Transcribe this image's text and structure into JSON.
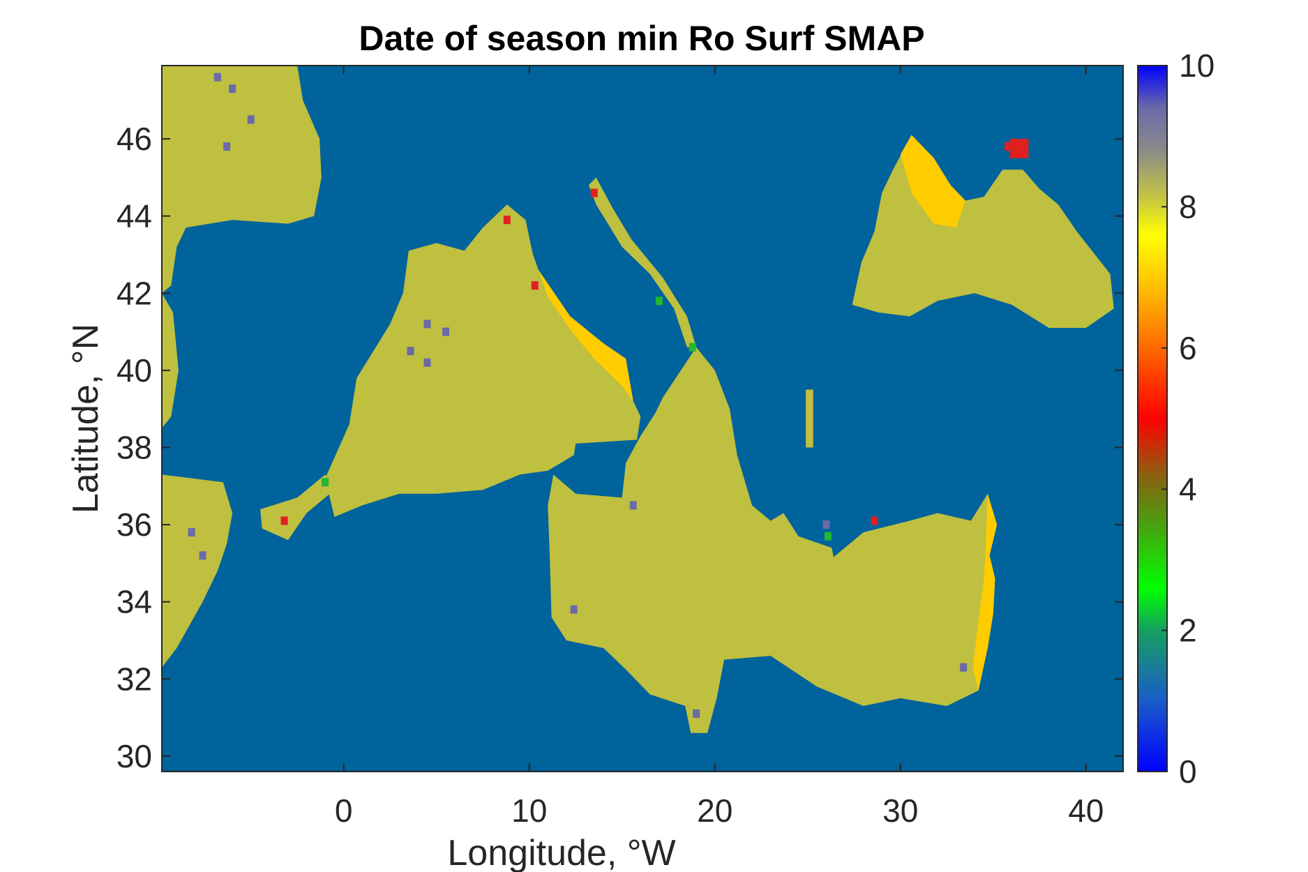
{
  "chart_data": {
    "type": "heatmap",
    "title": "Date of season min Ro Surf SMAP",
    "xlabel": "Longitude, °W",
    "ylabel": "Latitude, °N",
    "xlim": [
      -9.8,
      42
    ],
    "ylim": [
      29.6,
      47.9
    ],
    "x_ticks": [
      0,
      10,
      20,
      30,
      40
    ],
    "y_ticks": [
      30,
      32,
      34,
      36,
      38,
      40,
      42,
      44,
      46
    ],
    "colorbar": {
      "range": [
        0,
        10
      ],
      "ticks": [
        0,
        2,
        4,
        6,
        8,
        10
      ],
      "colormap_stops": [
        {
          "value": 0,
          "color": "#0000ff"
        },
        {
          "value": 1,
          "color": "#1a5cc8"
        },
        {
          "value": 2,
          "color": "#16a060"
        },
        {
          "value": 2.6,
          "color": "#00ff00"
        },
        {
          "value": 3.5,
          "color": "#4aa010"
        },
        {
          "value": 4.2,
          "color": "#8b6010"
        },
        {
          "value": 5,
          "color": "#ff0000"
        },
        {
          "value": 6,
          "color": "#ff6a00"
        },
        {
          "value": 7,
          "color": "#ffcc00"
        },
        {
          "value": 7.6,
          "color": "#ffff00"
        },
        {
          "value": 8.1,
          "color": "#c8c840"
        },
        {
          "value": 8.8,
          "color": "#8a8a8a"
        },
        {
          "value": 9.4,
          "color": "#6a6aa8"
        },
        {
          "value": 10,
          "color": "#0000ff"
        }
      ]
    },
    "background_color": "#00639b",
    "dominant_value": 8.2,
    "regions": [
      {
        "name": "bay-of-biscay",
        "value": 8.2,
        "color": "#bfbf40",
        "polygon": [
          [
            -9.8,
            47.9
          ],
          [
            -2.5,
            47.9
          ],
          [
            -2.2,
            47
          ],
          [
            -1.3,
            46
          ],
          [
            -1.2,
            45
          ],
          [
            -1.6,
            44
          ],
          [
            -3,
            43.8
          ],
          [
            -6,
            43.9
          ],
          [
            -8.5,
            43.7
          ],
          [
            -9,
            43.2
          ],
          [
            -9.3,
            42.2
          ],
          [
            -9.8,
            42
          ]
        ]
      },
      {
        "name": "portugal-coast",
        "value": 8.2,
        "color": "#bfbf40",
        "polygon": [
          [
            -9.8,
            42
          ],
          [
            -9.2,
            41.5
          ],
          [
            -8.9,
            40
          ],
          [
            -9.3,
            38.8
          ],
          [
            -9.8,
            38.5
          ]
        ]
      },
      {
        "name": "morocco-atlantic",
        "value": 8.2,
        "color": "#bfbf40",
        "polygon": [
          [
            -9.8,
            37.3
          ],
          [
            -6.5,
            37.1
          ],
          [
            -6,
            36.3
          ],
          [
            -6.3,
            35.5
          ],
          [
            -6.8,
            34.8
          ],
          [
            -7.6,
            34
          ],
          [
            -9,
            32.8
          ],
          [
            -9.8,
            32.3
          ]
        ]
      },
      {
        "name": "alboran",
        "value": 8.2,
        "color": "#bfbf40",
        "polygon": [
          [
            -4.5,
            36.4
          ],
          [
            -2.5,
            36.7
          ],
          [
            -1,
            37.3
          ],
          [
            -0.5,
            36.9
          ],
          [
            -2,
            36.3
          ],
          [
            -3,
            35.6
          ],
          [
            -4.4,
            35.9
          ]
        ]
      },
      {
        "name": "western-med",
        "value": 8.2,
        "color": "#bfbf40",
        "polygon": [
          [
            -1,
            37.2
          ],
          [
            0.3,
            38.6
          ],
          [
            0.7,
            39.8
          ],
          [
            2.5,
            41.2
          ],
          [
            3.2,
            42
          ],
          [
            3.5,
            43.1
          ],
          [
            5,
            43.3
          ],
          [
            6.5,
            43.1
          ],
          [
            7.5,
            43.7
          ],
          [
            8.8,
            44.3
          ],
          [
            9.8,
            43.9
          ],
          [
            10.2,
            43
          ],
          [
            10.5,
            42.6
          ],
          [
            12.2,
            41.4
          ],
          [
            14,
            40.7
          ],
          [
            15.2,
            40.3
          ],
          [
            15.6,
            39.2
          ],
          [
            16,
            38.8
          ],
          [
            15.8,
            38.2
          ],
          [
            12.5,
            38.1
          ],
          [
            12.4,
            37.8
          ],
          [
            11,
            37.4
          ],
          [
            9.5,
            37.3
          ],
          [
            7.5,
            36.9
          ],
          [
            5,
            36.8
          ],
          [
            3,
            36.8
          ],
          [
            1,
            36.5
          ],
          [
            -0.5,
            36.2
          ]
        ]
      },
      {
        "name": "tyrrhenian-coast",
        "value": 7.0,
        "color": "#ffcc00",
        "polygon": [
          [
            10.5,
            42.6
          ],
          [
            12.2,
            41.4
          ],
          [
            14,
            40.7
          ],
          [
            15.2,
            40.3
          ],
          [
            15.6,
            39.2
          ],
          [
            15,
            39.6
          ],
          [
            13.5,
            40.3
          ],
          [
            12.3,
            41
          ],
          [
            11,
            41.9
          ]
        ]
      },
      {
        "name": "adriatic",
        "value": 8.2,
        "color": "#bfbf40",
        "polygon": [
          [
            13.2,
            44.8
          ],
          [
            13.6,
            44.3
          ],
          [
            15,
            43.2
          ],
          [
            16.5,
            42.5
          ],
          [
            17.8,
            41.6
          ],
          [
            18.5,
            40.6
          ],
          [
            19,
            40.6
          ],
          [
            18.5,
            41.4
          ],
          [
            17.2,
            42.4
          ],
          [
            15.5,
            43.4
          ],
          [
            14.5,
            44.2
          ],
          [
            13.6,
            45
          ]
        ]
      },
      {
        "name": "central-eastern-med",
        "value": 8.2,
        "color": "#bfbf40",
        "polygon": [
          [
            11.3,
            37.3
          ],
          [
            12.5,
            36.8
          ],
          [
            15,
            36.7
          ],
          [
            15.2,
            37.6
          ],
          [
            16,
            38.3
          ],
          [
            16.8,
            38.9
          ],
          [
            17.2,
            39.3
          ],
          [
            19,
            40.6
          ],
          [
            20,
            40
          ],
          [
            20.8,
            39
          ],
          [
            21.2,
            37.8
          ],
          [
            22,
            36.5
          ],
          [
            23,
            36.1
          ],
          [
            23.7,
            36.3
          ],
          [
            24.5,
            35.7
          ],
          [
            26.3,
            35.4
          ],
          [
            26.5,
            34.9
          ],
          [
            25,
            34.6
          ],
          [
            28,
            35.8
          ],
          [
            30.5,
            36.1
          ],
          [
            32,
            36.3
          ],
          [
            33.8,
            36.1
          ],
          [
            34.7,
            36.8
          ],
          [
            35.2,
            36
          ],
          [
            34.8,
            35.2
          ],
          [
            35.1,
            34.6
          ],
          [
            35,
            33.7
          ],
          [
            34.7,
            32.8
          ],
          [
            34.2,
            31.7
          ],
          [
            32.5,
            31.3
          ],
          [
            30,
            31.5
          ],
          [
            28,
            31.3
          ],
          [
            25.5,
            31.8
          ],
          [
            23,
            32.6
          ],
          [
            20.5,
            32.5
          ],
          [
            20.1,
            31.5
          ],
          [
            19.6,
            30.6
          ],
          [
            18.7,
            30.6
          ],
          [
            18.4,
            31.3
          ],
          [
            16.5,
            31.6
          ],
          [
            15.3,
            32.2
          ],
          [
            14,
            32.8
          ],
          [
            12,
            33
          ],
          [
            11.2,
            33.6
          ],
          [
            11.1,
            35.2
          ],
          [
            11,
            36.5
          ]
        ]
      },
      {
        "name": "levant-coast",
        "value": 7.0,
        "color": "#ffcc00",
        "polygon": [
          [
            34.7,
            36.8
          ],
          [
            35.2,
            36
          ],
          [
            34.8,
            35.2
          ],
          [
            35.1,
            34.6
          ],
          [
            35,
            33.7
          ],
          [
            34.7,
            32.8
          ],
          [
            34.2,
            31.7
          ],
          [
            33.9,
            32.3
          ],
          [
            34.2,
            33.5
          ],
          [
            34.5,
            34.6
          ],
          [
            34.6,
            35.5
          ]
        ]
      },
      {
        "name": "aegean-strip",
        "value": 8.2,
        "color": "#bfbf40",
        "polygon": [
          [
            24.9,
            39.5
          ],
          [
            25.3,
            39.5
          ],
          [
            25.3,
            38
          ],
          [
            24.9,
            38
          ]
        ]
      },
      {
        "name": "black-sea",
        "value": 8.2,
        "color": "#bfbf40",
        "polygon": [
          [
            27.4,
            41.7
          ],
          [
            28.8,
            41.5
          ],
          [
            30.5,
            41.4
          ],
          [
            32,
            41.8
          ],
          [
            34,
            42
          ],
          [
            36,
            41.7
          ],
          [
            38,
            41.1
          ],
          [
            40,
            41.1
          ],
          [
            41.5,
            41.6
          ],
          [
            41.3,
            42.5
          ],
          [
            39.5,
            43.6
          ],
          [
            38.5,
            44.3
          ],
          [
            37.5,
            44.7
          ],
          [
            36.6,
            45.2
          ],
          [
            35.5,
            45.2
          ],
          [
            34.5,
            44.5
          ],
          [
            33.5,
            44.4
          ],
          [
            32.7,
            44.8
          ],
          [
            31.8,
            45.5
          ],
          [
            30.6,
            46.1
          ],
          [
            29.6,
            45.2
          ],
          [
            29,
            44.6
          ],
          [
            28.6,
            43.6
          ],
          [
            27.9,
            42.8
          ]
        ]
      },
      {
        "name": "black-sea-north",
        "value": 7.0,
        "color": "#ffcc00",
        "polygon": [
          [
            33.5,
            44.4
          ],
          [
            32.7,
            44.8
          ],
          [
            31.8,
            45.5
          ],
          [
            30.6,
            46.1
          ],
          [
            30,
            45.6
          ],
          [
            30.6,
            44.6
          ],
          [
            31.8,
            43.8
          ],
          [
            33,
            43.7
          ]
        ]
      },
      {
        "name": "azov",
        "value": 5.0,
        "color": "#e02020",
        "polygon": [
          [
            35.9,
            46
          ],
          [
            36.9,
            46
          ],
          [
            36.9,
            45.5
          ],
          [
            35.9,
            45.5
          ]
        ]
      }
    ],
    "anomaly_cells_value_9": [
      [
        -6.8,
        47.6
      ],
      [
        -6,
        47.3
      ],
      [
        -5,
        46.5
      ],
      [
        -6.3,
        45.8
      ],
      [
        4.5,
        41.2
      ],
      [
        5.5,
        41
      ],
      [
        3.6,
        40.5
      ],
      [
        4.5,
        40.2
      ],
      [
        -8.2,
        35.8
      ],
      [
        -7.6,
        35.2
      ],
      [
        12.4,
        33.8
      ],
      [
        19,
        31.1
      ],
      [
        26,
        36
      ],
      [
        33.4,
        32.3
      ],
      [
        15.6,
        36.5
      ]
    ],
    "anomaly_cells_value_5": [
      [
        -3.2,
        36.1
      ],
      [
        8.8,
        43.9
      ],
      [
        10.3,
        42.2
      ],
      [
        13.5,
        44.6
      ],
      [
        28.6,
        36.1
      ],
      [
        35.8,
        45.8
      ]
    ],
    "anomaly_cells_value_2": [
      [
        17,
        41.8
      ],
      [
        18.8,
        40.6
      ],
      [
        26.1,
        35.7
      ],
      [
        -1,
        37.1
      ]
    ]
  }
}
